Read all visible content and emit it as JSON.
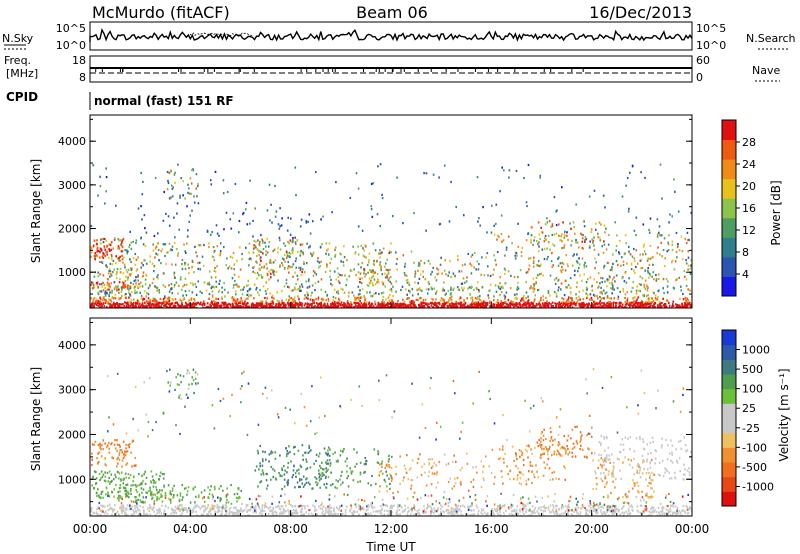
{
  "header": {
    "station": "McMurdo (fitACF)",
    "beam": "Beam 06",
    "date": "16/Dec/2013",
    "nsky_label": "N.Sky",
    "nsearch_label": "N.Search",
    "nsky_ticks": [
      "10^5",
      "10^0"
    ],
    "nsearch_ticks": [
      "10^5",
      "10^0"
    ],
    "freq_label_1": "Freq.",
    "freq_label_2": "[MHz]",
    "freq_ticks": [
      "18",
      "8"
    ],
    "nave_label": "Nave",
    "nave_ticks": [
      "60",
      "0"
    ],
    "cpid_label": "CPID",
    "cpid_value": "normal (fast) 151 RF"
  },
  "chart_data": [
    {
      "type": "heatmap",
      "name": "power",
      "ylabel": "Slant Range [km]",
      "yticks": [
        "1000",
        "2000",
        "3000",
        "4000"
      ],
      "ylim": [
        180,
        4600
      ],
      "colorbar_label": "Power [dB]",
      "colorbar_ticks": [
        "4",
        "8",
        "12",
        "16",
        "20",
        "24",
        "28"
      ],
      "colors": [
        "#1818e8",
        "#2a55b0",
        "#2f7f8e",
        "#4e9e62",
        "#8cc34a",
        "#e7c21c",
        "#f08a18",
        "#f05a10",
        "#e01010"
      ]
    },
    {
      "type": "heatmap",
      "name": "velocity",
      "ylabel": "Slant Range [km]",
      "yticks": [
        "1000",
        "2000",
        "3000",
        "4000"
      ],
      "ylim": [
        180,
        4600
      ],
      "xlabel": "Time UT",
      "xticks": [
        "00:00",
        "04:00",
        "08:00",
        "12:00",
        "16:00",
        "20:00",
        "00:00"
      ],
      "colorbar_label": "Velocity [m s⁻¹]",
      "colorbar_ticks": [
        "1000",
        "500",
        "100",
        "25",
        "-25",
        "-100",
        "-500",
        "-1000"
      ],
      "colors": [
        "#1a3ad8",
        "#2a5aa8",
        "#3f7a7e",
        "#4e9e4e",
        "#6ac03a",
        "#c8c8c8",
        "#c8c8c8",
        "#f0c060",
        "#f09030",
        "#f07020",
        "#e84818",
        "#e01010"
      ]
    }
  ]
}
